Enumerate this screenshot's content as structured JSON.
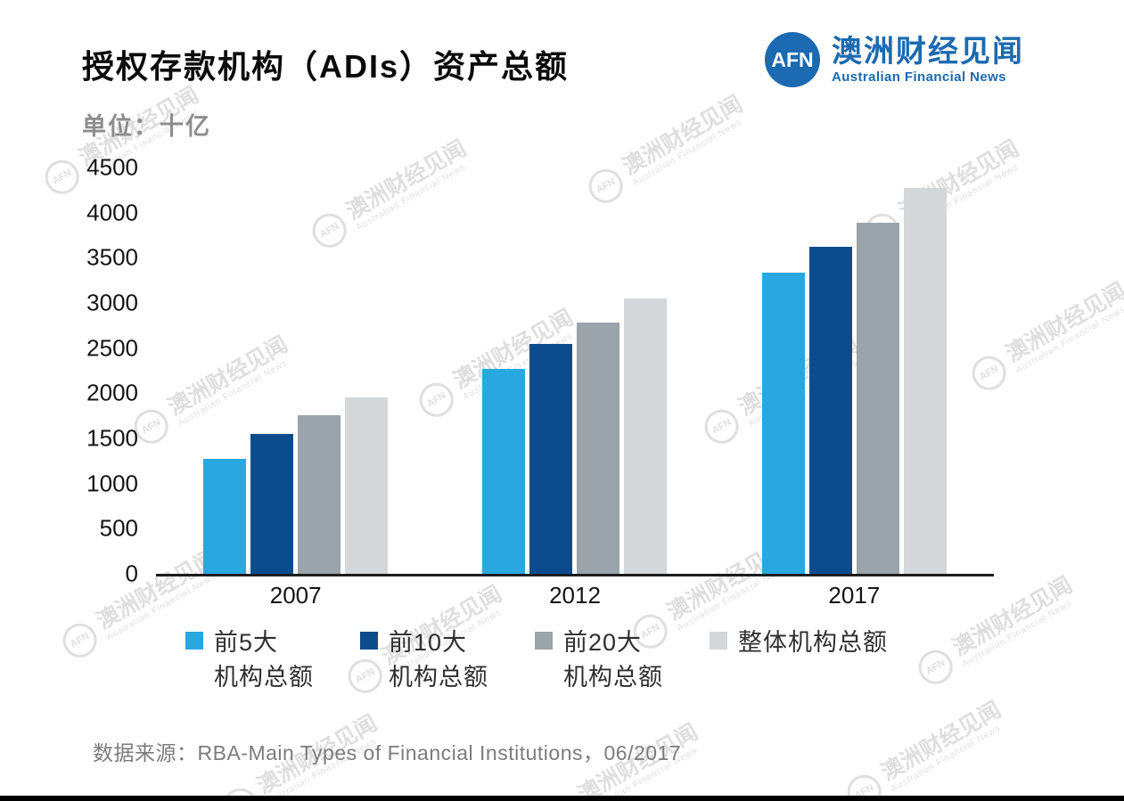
{
  "header": {
    "title": "授权存款机构（ADIs）资产总额",
    "unit_label": "单位：十亿",
    "logo": {
      "abbr": "AFN",
      "name_cn": "澳洲财经见闻",
      "name_en": "Australian Financial News",
      "color": "#1c6ab1"
    }
  },
  "chart_data": {
    "type": "bar",
    "title": "授权存款机构（ADIs）资产总额",
    "unit": "十亿",
    "categories": [
      "2007",
      "2012",
      "2017"
    ],
    "series": [
      {
        "key": "top5",
        "name": "前5大机构总额",
        "label_lines": [
          "前5大",
          "机构总额"
        ],
        "color": "#29a8df",
        "values": [
          1270,
          2270,
          3340
        ]
      },
      {
        "key": "top10",
        "name": "前10大机构总额",
        "label_lines": [
          "前10大",
          "机构总额"
        ],
        "color": "#0c4c8c",
        "values": [
          1550,
          2550,
          3620
        ]
      },
      {
        "key": "top20",
        "name": "前20大机构总额",
        "label_lines": [
          "前20大",
          "机构总额"
        ],
        "color": "#9ba4ab",
        "values": [
          1760,
          2780,
          3890
        ]
      },
      {
        "key": "all",
        "name": "整体机构总额",
        "label_lines": [
          "整体机构总额"
        ],
        "color": "#d3d7d9",
        "values": [
          1950,
          3050,
          4270
        ]
      }
    ],
    "ylim": [
      0,
      4500
    ],
    "yticks": [
      4500,
      4000,
      3500,
      3000,
      2500,
      2000,
      1500,
      1000,
      500,
      0
    ],
    "grid": false,
    "legend_position": "bottom"
  },
  "watermark": {
    "abbr": "AFN",
    "text_cn": "澳洲财经见闻",
    "text_en": "Australian Financial News"
  },
  "footer": {
    "source": "数据来源：RBA-Main Types of Financial Institutions，06/2017"
  }
}
